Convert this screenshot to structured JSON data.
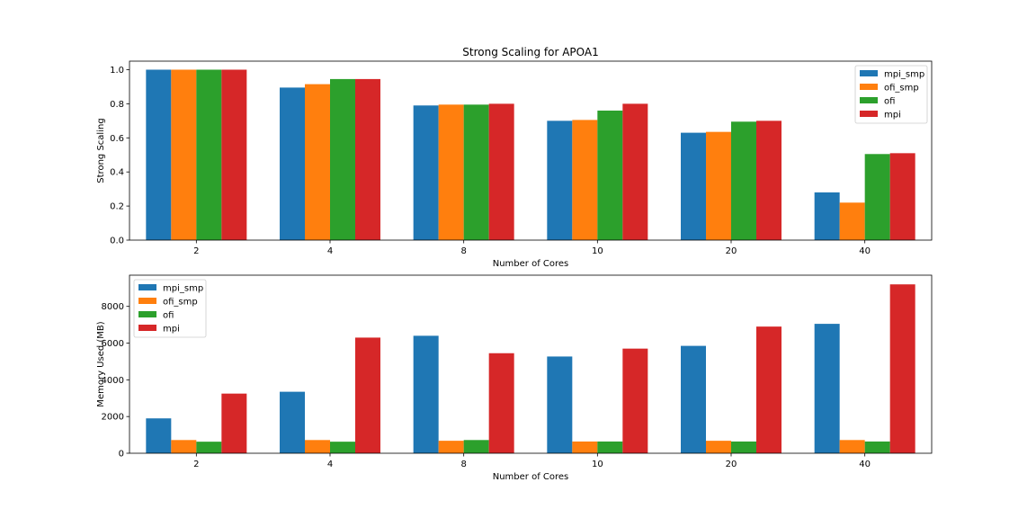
{
  "chart_data": [
    {
      "type": "bar",
      "title": "Strong Scaling for APOA1",
      "xlabel": "Number of Cores",
      "ylabel": "Strong Scaling",
      "categories": [
        "2",
        "4",
        "8",
        "10",
        "20",
        "40"
      ],
      "ylim": [
        0,
        1.05
      ],
      "yticks": [
        0.0,
        0.2,
        0.4,
        0.6,
        0.8,
        1.0
      ],
      "ytick_labels": [
        "0.0",
        "0.2",
        "0.4",
        "0.6",
        "0.8",
        "1.0"
      ],
      "legend_position": "top-right",
      "grid": false,
      "series": [
        {
          "name": "mpi_smp",
          "color": "#1f77b4",
          "values": [
            1.0,
            0.895,
            0.79,
            0.7,
            0.63,
            0.28
          ]
        },
        {
          "name": "ofi_smp",
          "color": "#ff7f0e",
          "values": [
            1.0,
            0.915,
            0.795,
            0.705,
            0.635,
            0.22
          ]
        },
        {
          "name": "ofi",
          "color": "#2ca02c",
          "values": [
            1.0,
            0.945,
            0.795,
            0.76,
            0.695,
            0.505
          ]
        },
        {
          "name": "mpi",
          "color": "#d62728",
          "values": [
            1.0,
            0.945,
            0.8,
            0.8,
            0.7,
            0.51
          ]
        }
      ]
    },
    {
      "type": "bar",
      "title": "",
      "xlabel": "Number of Cores",
      "ylabel": "Memory Used (MB)",
      "categories": [
        "2",
        "4",
        "8",
        "10",
        "20",
        "40"
      ],
      "ylim": [
        0,
        9700
      ],
      "yticks": [
        0,
        2000,
        4000,
        6000,
        8000
      ],
      "ytick_labels": [
        "0",
        "2000",
        "4000",
        "6000",
        "8000"
      ],
      "legend_position": "top-left",
      "grid": false,
      "series": [
        {
          "name": "mpi_smp",
          "color": "#1f77b4",
          "values": [
            1900,
            3350,
            6400,
            5270,
            5850,
            7050
          ]
        },
        {
          "name": "ofi_smp",
          "color": "#ff7f0e",
          "values": [
            720,
            720,
            680,
            640,
            680,
            720
          ]
        },
        {
          "name": "ofi",
          "color": "#2ca02c",
          "values": [
            630,
            630,
            720,
            640,
            640,
            640
          ]
        },
        {
          "name": "mpi",
          "color": "#d62728",
          "values": [
            3250,
            6300,
            5450,
            5700,
            6900,
            9200
          ]
        }
      ]
    }
  ]
}
